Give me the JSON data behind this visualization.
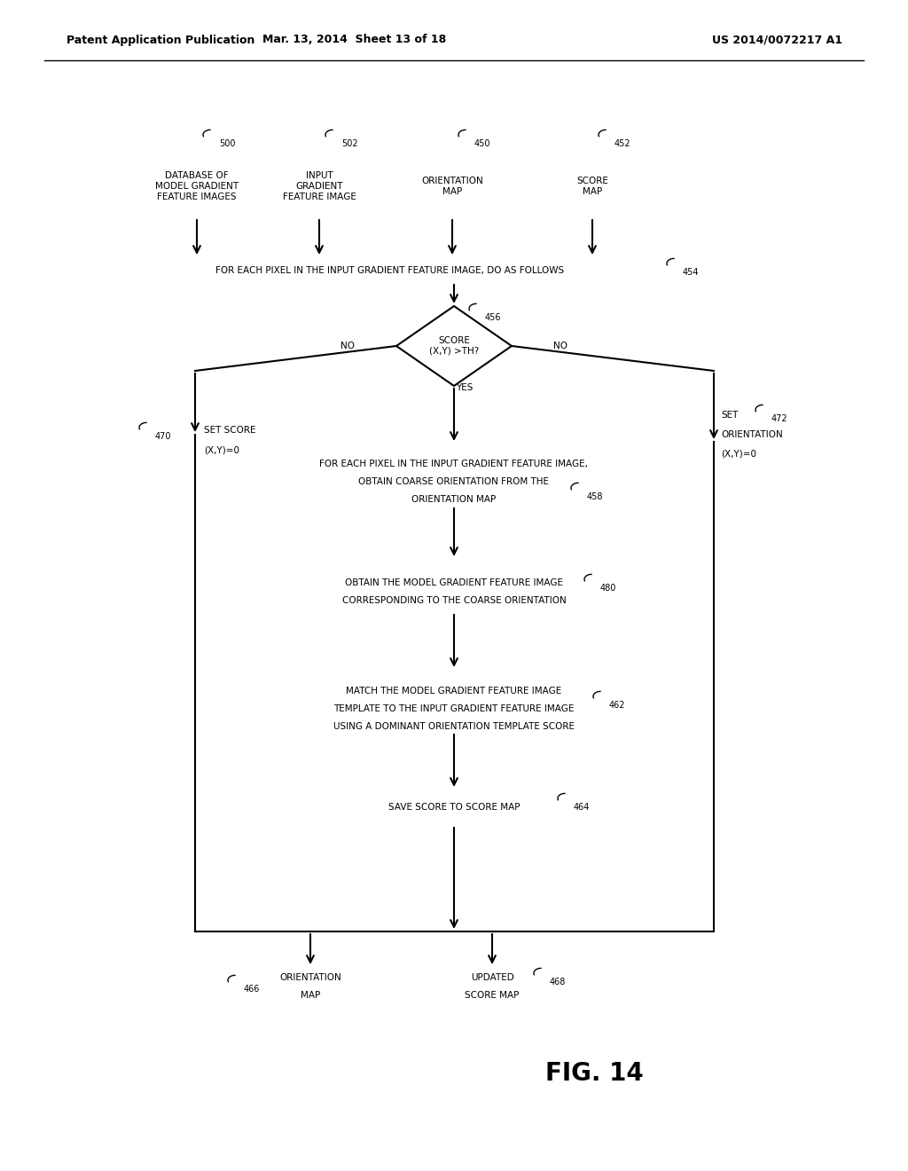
{
  "header_left": "Patent Application Publication",
  "header_mid": "Mar. 13, 2014  Sheet 13 of 18",
  "header_right": "US 2014/0072217 A1",
  "fig_label": "FIG. 14",
  "bg_color": "#ffffff",
  "line_color": "#000000",
  "text_color": "#000000",
  "figsize": [
    10.24,
    13.2
  ],
  "dpi": 100
}
